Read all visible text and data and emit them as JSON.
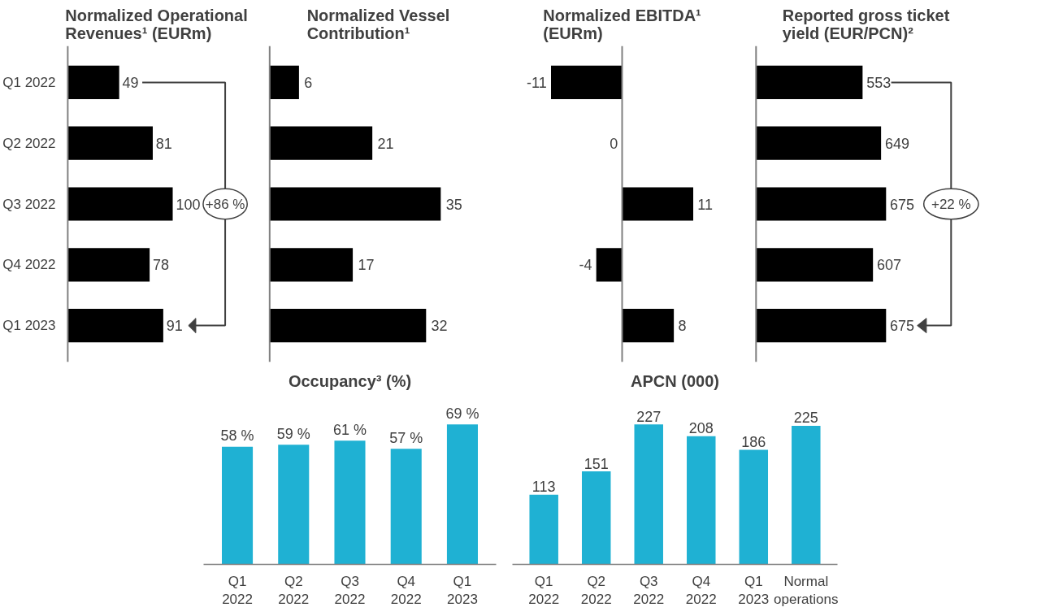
{
  "chart_data": [
    {
      "type": "bar",
      "orientation": "horizontal",
      "title": "Normalized Operational Revenues¹ (EURm)",
      "categories": [
        "Q1 2022",
        "Q2 2022",
        "Q3 2022",
        "Q4 2022",
        "Q1 2023"
      ],
      "values": [
        49,
        81,
        100,
        78,
        91
      ],
      "color": "#000000",
      "data_labels": true,
      "tick_labels": "y",
      "annotations": [
        "+86 %"
      ]
    },
    {
      "type": "bar",
      "orientation": "horizontal",
      "title": "Normalized Vessel Contribution¹",
      "categories": [
        "Q1 2022",
        "Q2 2022",
        "Q3 2022",
        "Q4 2022",
        "Q1 2023"
      ],
      "values": [
        6,
        21,
        35,
        17,
        32
      ],
      "color": "#000000",
      "data_labels": true,
      "tick_labels": false
    },
    {
      "type": "bar",
      "orientation": "horizontal",
      "title": "Normalized EBITDA¹ (EURm)",
      "categories": [
        "Q1 2022",
        "Q2 2022",
        "Q3 2022",
        "Q4 2022",
        "Q1 2023"
      ],
      "values": [
        -11,
        0,
        11,
        -4,
        8
      ],
      "color": "#000000",
      "data_labels": true,
      "tick_labels": false
    },
    {
      "type": "bar",
      "orientation": "horizontal",
      "title": "Reported gross ticket yield (EUR/PCN)²",
      "categories": [
        "Q1 2022",
        "Q2 2022",
        "Q3 2022",
        "Q4 2022",
        "Q1 2023"
      ],
      "values": [
        553,
        649,
        675,
        607,
        675
      ],
      "color": "#000000",
      "data_labels": true,
      "tick_labels": false,
      "annotations": [
        "+22 %"
      ]
    },
    {
      "type": "bar",
      "title": "Occupancy³ (%)",
      "categories": [
        "Q1 2022",
        "Q2 2022",
        "Q3 2022",
        "Q4 2022",
        "Q1 2023"
      ],
      "values": [
        58,
        59,
        61,
        57,
        69
      ],
      "value_labels": [
        "58 %",
        "59 %",
        "61 %",
        "57 %",
        "69 %"
      ],
      "color": "#1fb1d3"
    },
    {
      "type": "bar",
      "title": "APCN (000)",
      "categories": [
        "Q1 2022",
        "Q2 2022",
        "Q3 2022",
        "Q4 2022",
        "Q1 2023",
        "Normal operations"
      ],
      "values": [
        113,
        151,
        227,
        208,
        186,
        225
      ],
      "color": "#1fb1d3",
      "data_labels": true
    }
  ]
}
